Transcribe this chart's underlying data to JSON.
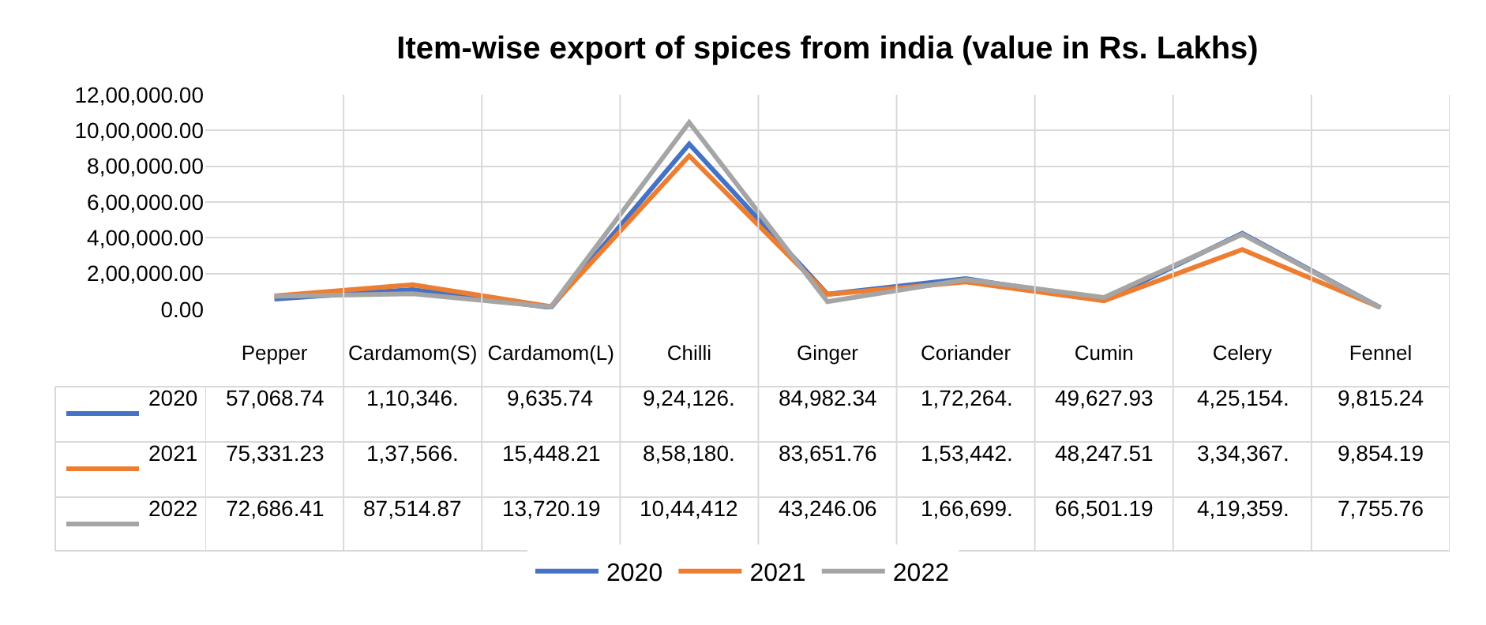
{
  "chart_data": {
    "type": "line",
    "title": "Item-wise export of spices from india (value in Rs. Lakhs)",
    "categories": [
      "Pepper",
      "Cardamom(S)",
      "Cardamom(L)",
      "Chilli",
      "Ginger",
      "Coriander",
      "Cumin",
      "Celery",
      "Fennel"
    ],
    "series": [
      {
        "name": "2020",
        "color": "#4472c4",
        "values": [
          57068.74,
          110346,
          9635.74,
          924126,
          84982.34,
          172264,
          49627.93,
          425154,
          9815.24
        ],
        "value_labels": [
          "57,068.74",
          "1,10,346.",
          "9,635.74",
          "9,24,126.",
          "84,982.34",
          "1,72,264.",
          "49,627.93",
          "4,25,154.",
          "9,815.24"
        ]
      },
      {
        "name": "2021",
        "color": "#ed7d31",
        "values": [
          75331.23,
          137566,
          15448.21,
          858180,
          83651.76,
          153442,
          48247.51,
          334367,
          9854.19
        ],
        "value_labels": [
          "75,331.23",
          "1,37,566.",
          "15,448.21",
          "8,58,180.",
          "83,651.76",
          "1,53,442.",
          "48,247.51",
          "3,34,367.",
          "9,854.19"
        ]
      },
      {
        "name": "2022",
        "color": "#a5a5a5",
        "values": [
          72686.41,
          87514.87,
          13720.19,
          1044412,
          43246.06,
          166699,
          66501.19,
          419359,
          7755.76
        ],
        "value_labels": [
          "72,686.41",
          "87,514.87",
          "13,720.19",
          "10,44,412",
          "43,246.06",
          "1,66,699.",
          "66,501.19",
          "4,19,359.",
          "7,755.76"
        ]
      }
    ],
    "ylim": [
      0,
      1200000
    ],
    "yticks": [
      {
        "value": 0,
        "label": "0.00"
      },
      {
        "value": 200000,
        "label": "2,00,000.00"
      },
      {
        "value": 400000,
        "label": "4,00,000.00"
      },
      {
        "value": 600000,
        "label": "6,00,000.00"
      },
      {
        "value": 800000,
        "label": "8,00,000.00"
      },
      {
        "value": 1000000,
        "label": "10,00,000.00"
      },
      {
        "value": 1200000,
        "label": "12,00,000.00"
      }
    ],
    "grid": "y",
    "legend": "bottom",
    "marker": "none",
    "line_style": "solid"
  }
}
